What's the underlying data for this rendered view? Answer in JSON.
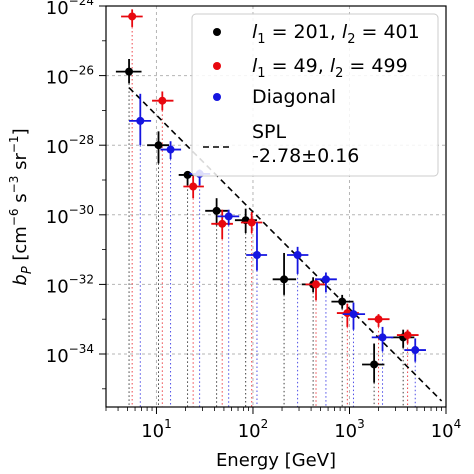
{
  "chart_data": {
    "type": "scatter",
    "xlabel": "Energy [GeV]",
    "ylabel_base": "b",
    "ylabel_sub": "P",
    "ylabel_unit_parts": [
      "[cm",
      "−6",
      " s",
      "−3",
      " sr",
      "−1",
      "]"
    ],
    "xscale": "log",
    "yscale": "log",
    "xlim": [
      3,
      10000
    ],
    "ylim": [
      3e-36,
      1e-24
    ],
    "xtick_exponents": [
      1,
      2,
      3,
      4
    ],
    "ytick_exponents": [
      -34,
      -32,
      -30,
      -28,
      -26,
      -24
    ],
    "tick_base": "10",
    "grid": true,
    "legend_position": "upper right",
    "series": [
      {
        "name_parts": [
          "l",
          "1",
          " = 201, ",
          "l",
          "2",
          " = 401"
        ],
        "color": "#000000",
        "points": [
          {
            "x": 5.2,
            "xlo": 3.8,
            "xhi": 7.0,
            "y": 1.3e-26,
            "ylo": 6e-27,
            "yhi": 3e-26
          },
          {
            "x": 10.5,
            "xlo": 8.0,
            "xhi": 13.5,
            "y": 1e-28,
            "ylo": 3e-29,
            "yhi": 2.5e-28
          },
          {
            "x": 21,
            "xlo": 17,
            "xhi": 27,
            "y": 1.4e-29,
            "ylo": 7e-30,
            "yhi": 1.8e-29
          },
          {
            "x": 42,
            "xlo": 32,
            "xhi": 55,
            "y": 1.3e-30,
            "ylo": 5e-31,
            "yhi": 3e-30
          },
          {
            "x": 84,
            "xlo": 65,
            "xhi": 110,
            "y": 7e-31,
            "ylo": 3e-31,
            "yhi": 1.5e-30
          },
          {
            "x": 210,
            "xlo": 160,
            "xhi": 280,
            "y": 1.4e-32,
            "ylo": 5e-33,
            "yhi": 8e-32
          },
          {
            "x": 420,
            "xlo": 320,
            "xhi": 560,
            "y": 1e-32,
            "ylo": 6e-33,
            "yhi": 1.6e-32
          },
          {
            "x": 840,
            "xlo": 650,
            "xhi": 1100,
            "y": 3.2e-33,
            "ylo": 2e-33,
            "yhi": 5e-33
          },
          {
            "x": 1800,
            "xlo": 1350,
            "xhi": 2300,
            "y": 5e-35,
            "ylo": 1.5e-35,
            "yhi": 2e-34
          },
          {
            "x": 3600,
            "xlo": 2700,
            "xhi": 4700,
            "y": 3e-34,
            "ylo": 1.5e-34,
            "yhi": 5e-34
          }
        ]
      },
      {
        "name_parts": [
          "l",
          "1",
          " = 49, ",
          "l",
          "2",
          " = 499"
        ],
        "color": "#e8080f",
        "points": [
          {
            "x": 5.6,
            "xlo": 4.3,
            "xhi": 7.2,
            "y": 5e-25,
            "ylo": 2.5e-25,
            "yhi": 8e-25
          },
          {
            "x": 11.5,
            "xlo": 9.0,
            "xhi": 15.0,
            "y": 1.9e-27,
            "ylo": 1e-27,
            "yhi": 3.5e-27
          },
          {
            "x": 24,
            "xlo": 19,
            "xhi": 31,
            "y": 6.5e-30,
            "ylo": 3e-30,
            "yhi": 1.3e-29
          },
          {
            "x": 48,
            "xlo": 37,
            "xhi": 62,
            "y": 5.5e-31,
            "ylo": 2e-31,
            "yhi": 1.4e-30
          },
          {
            "x": 97,
            "xlo": 75,
            "xhi": 125,
            "y": 6e-31,
            "ylo": 3e-31,
            "yhi": 1.2e-30
          },
          {
            "x": 450,
            "xlo": 350,
            "xhi": 580,
            "y": 1e-32,
            "ylo": 3.5e-33,
            "yhi": 1.5e-32
          },
          {
            "x": 950,
            "xlo": 740,
            "xhi": 1250,
            "y": 1.5e-33,
            "ylo": 6e-34,
            "yhi": 2.8e-33
          },
          {
            "x": 2000,
            "xlo": 1550,
            "xhi": 2600,
            "y": 1e-33,
            "ylo": 6e-34,
            "yhi": 1.4e-33
          },
          {
            "x": 4000,
            "xlo": 3100,
            "xhi": 5200,
            "y": 3.5e-34,
            "ylo": 2e-34,
            "yhi": 5e-34
          }
        ]
      },
      {
        "name_parts": [
          "Diagonal"
        ],
        "color": "#1515e0",
        "points": [
          {
            "x": 6.8,
            "xlo": 5.2,
            "xhi": 8.8,
            "y": 5e-28,
            "ylo": 1e-28,
            "yhi": 3e-27
          },
          {
            "x": 14,
            "xlo": 11,
            "xhi": 18,
            "y": 7.5e-29,
            "ylo": 4e-29,
            "yhi": 1.3e-28
          },
          {
            "x": 28,
            "xlo": 22,
            "xhi": 36,
            "y": 1.5e-29,
            "ylo": 7e-30,
            "yhi": 2e-29
          },
          {
            "x": 56,
            "xlo": 43,
            "xhi": 72,
            "y": 9e-31,
            "ylo": 5e-31,
            "yhi": 1.4e-30
          },
          {
            "x": 110,
            "xlo": 85,
            "xhi": 140,
            "y": 7e-32,
            "ylo": 2.5e-32,
            "yhi": 6e-31
          },
          {
            "x": 290,
            "xlo": 225,
            "xhi": 375,
            "y": 7e-32,
            "ylo": 2e-32,
            "yhi": 1.2e-31
          },
          {
            "x": 570,
            "xlo": 440,
            "xhi": 740,
            "y": 1.4e-32,
            "ylo": 6e-33,
            "yhi": 2.2e-32
          },
          {
            "x": 1100,
            "xlo": 850,
            "xhi": 1450,
            "y": 1.4e-33,
            "ylo": 5e-34,
            "yhi": 3e-33
          },
          {
            "x": 2200,
            "xlo": 1700,
            "xhi": 2850,
            "y": 3e-34,
            "ylo": 1.2e-34,
            "yhi": 6e-34
          },
          {
            "x": 4800,
            "xlo": 3700,
            "xhi": 6200,
            "y": 1.3e-34,
            "ylo": 6e-35,
            "yhi": 2.8e-34
          }
        ]
      }
    ],
    "fit": {
      "name": "SPL",
      "value_label": "-2.78±0.16",
      "x_range": [
        5.2,
        9000
      ],
      "y_at_start": 4.5e-27,
      "slope_index": -2.78,
      "color": "#000000"
    }
  }
}
